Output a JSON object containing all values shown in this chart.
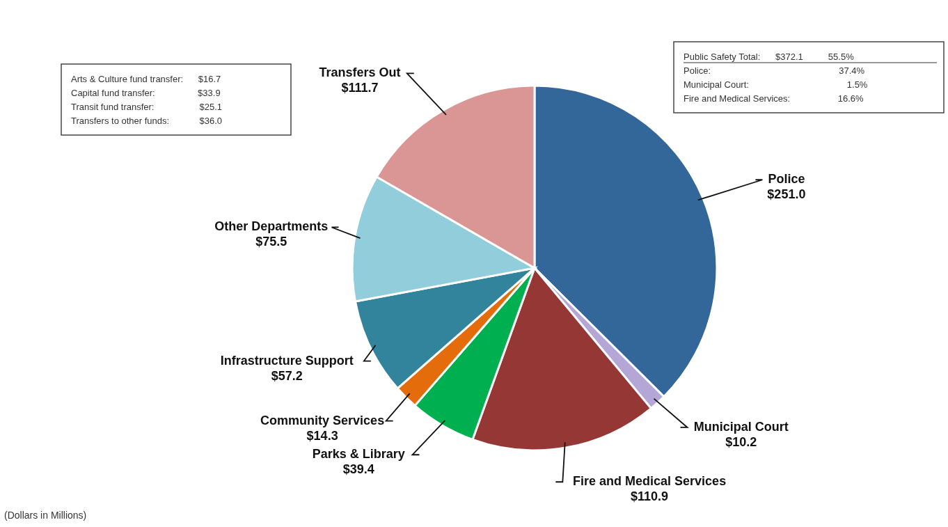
{
  "chart_data": {
    "type": "pie",
    "categories": [
      "Police",
      "Municipal Court",
      "Fire and Medical Services",
      "Parks & Library",
      "Community Services",
      "Infrastructure Support",
      "Other Departments",
      "Transfers Out"
    ],
    "values": [
      251.0,
      10.2,
      110.9,
      39.4,
      14.3,
      57.2,
      75.5,
      111.7
    ],
    "value_labels": [
      "$251.0",
      "$10.2",
      "$110.9",
      "$39.4",
      "$14.3",
      "$57.2",
      "$75.5",
      "$111.7"
    ],
    "colors": [
      "#336699",
      "#b4a7d6",
      "#953735",
      "#00b050",
      "#e46c0a",
      "#31849b",
      "#92cddc",
      "#d99694"
    ],
    "annotations": [
      "Arts & Culture fund transfer:      $16.7",
      "Capital fund transfer:                 $33.9",
      "Transit fund transfer:                  $25.1",
      "Transfers to other funds:            $36.0",
      "Public Safety Total:      $372.1          55.5%",
      "Police:                                                   37.4%",
      "Municipal Court:                                       1.5%",
      "Fire and Medical Services:                   16.6%",
      "(Dollars in Millions)"
    ]
  }
}
